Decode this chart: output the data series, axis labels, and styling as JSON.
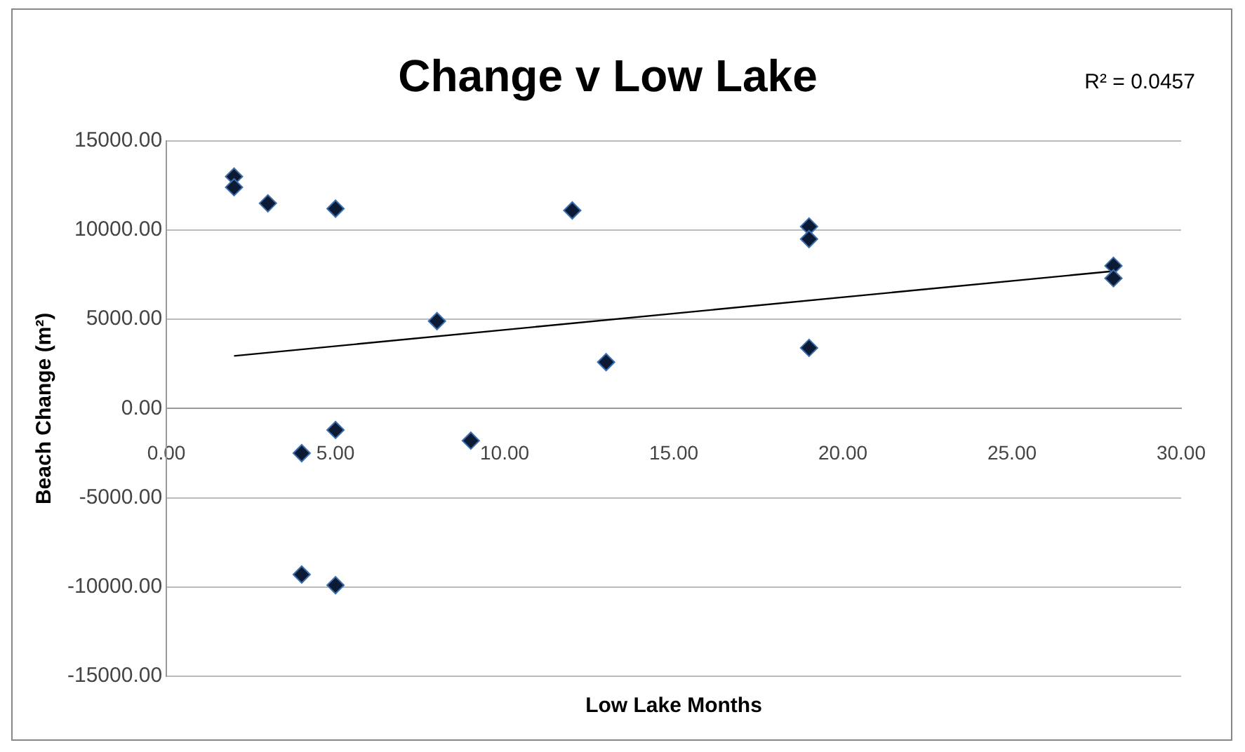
{
  "chart_data": {
    "type": "scatter",
    "title": "Change v Low Lake",
    "xlabel": "Low Lake Months",
    "ylabel": "Beach Change (m²)",
    "xlim": [
      0,
      30
    ],
    "xticks": [
      {
        "value": 0,
        "label": "0.00"
      },
      {
        "value": 5,
        "label": "5.00"
      },
      {
        "value": 10,
        "label": "10.00"
      },
      {
        "value": 15,
        "label": "15.00"
      },
      {
        "value": 20,
        "label": "20.00"
      },
      {
        "value": 25,
        "label": "25.00"
      },
      {
        "value": 30,
        "label": "30.00"
      }
    ],
    "ylim": [
      -15000,
      15000
    ],
    "yticks": [
      {
        "value": -15000,
        "label": "-15000.00"
      },
      {
        "value": -10000,
        "label": "-10000.00"
      },
      {
        "value": -5000,
        "label": "-5000.00"
      },
      {
        "value": 0,
        "label": "0.00"
      },
      {
        "value": 5000,
        "label": "5000.00"
      },
      {
        "value": 10000,
        "label": "10000.00"
      },
      {
        "value": 15000,
        "label": "15000.00"
      }
    ],
    "grid": "y",
    "legend": false,
    "marker": "diamond",
    "annotations": [
      "R² = 0.0457"
    ],
    "series": [
      {
        "color": "#0d1a33",
        "x": [
          2,
          2,
          3,
          5,
          12,
          8,
          13,
          5,
          4,
          9,
          4,
          5,
          19,
          19,
          19,
          28,
          28
        ],
        "values": [
          13000,
          12400,
          11500,
          11200,
          11100,
          4900,
          2600,
          -1200,
          -2500,
          -1800,
          -9300,
          -9900,
          10200,
          9500,
          3400,
          8000,
          7300
        ]
      },
      {
        "type": "line",
        "color": "#000000",
        "marker": "none",
        "x": [
          2,
          28
        ],
        "values": [
          2950,
          7700
        ]
      }
    ]
  }
}
